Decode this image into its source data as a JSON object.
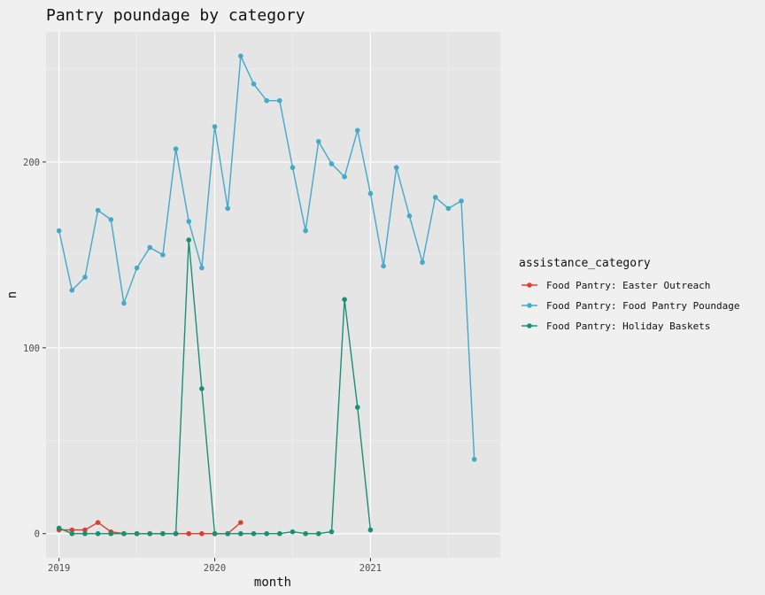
{
  "chart_data": {
    "type": "line",
    "title": "Pantry poundage by category",
    "xlabel": "month",
    "ylabel": "n",
    "x_ticks": [
      {
        "value": "2019-01",
        "label": "2019"
      },
      {
        "value": "2020-01",
        "label": "2020"
      },
      {
        "value": "2021-01",
        "label": "2021"
      }
    ],
    "y_ticks": [
      0,
      100,
      200
    ],
    "xlim": [
      "2018-12",
      "2021-11"
    ],
    "ylim": [
      -13,
      270
    ],
    "grid": true,
    "legend": {
      "title": "assistance_category",
      "position": "right"
    },
    "series": [
      {
        "name": "Food Pantry: Easter Outreach",
        "color": "#d9412e",
        "points": [
          [
            "2019-01",
            2
          ],
          [
            "2019-02",
            2
          ],
          [
            "2019-03",
            2
          ],
          [
            "2019-04",
            6
          ],
          [
            "2019-05",
            1
          ],
          [
            "2019-06",
            0
          ],
          [
            "2019-07",
            0
          ],
          [
            "2019-08",
            0
          ],
          [
            "2019-09",
            0
          ],
          [
            "2019-10",
            0
          ],
          [
            "2019-11",
            0
          ],
          [
            "2019-12",
            0
          ],
          [
            "2020-01",
            0
          ],
          [
            "2020-02",
            0
          ],
          [
            "2020-03",
            6
          ]
        ]
      },
      {
        "name": "Food Pantry: Food Pantry Poundage",
        "color": "#43aac8",
        "points": [
          [
            "2019-01",
            163
          ],
          [
            "2019-02",
            131
          ],
          [
            "2019-03",
            138
          ],
          [
            "2019-04",
            174
          ],
          [
            "2019-05",
            169
          ],
          [
            "2019-06",
            124
          ],
          [
            "2019-07",
            143
          ],
          [
            "2019-08",
            154
          ],
          [
            "2019-09",
            150
          ],
          [
            "2019-10",
            207
          ],
          [
            "2019-11",
            168
          ],
          [
            "2019-12",
            143
          ],
          [
            "2020-01",
            219
          ],
          [
            "2020-02",
            175
          ],
          [
            "2020-03",
            257
          ],
          [
            "2020-04",
            242
          ],
          [
            "2020-05",
            233
          ],
          [
            "2020-06",
            233
          ],
          [
            "2020-07",
            197
          ],
          [
            "2020-08",
            163
          ],
          [
            "2020-09",
            211
          ],
          [
            "2020-10",
            199
          ],
          [
            "2020-11",
            192
          ],
          [
            "2020-12",
            217
          ],
          [
            "2021-01",
            183
          ],
          [
            "2021-02",
            144
          ],
          [
            "2021-03",
            197
          ],
          [
            "2021-04",
            171
          ],
          [
            "2021-05",
            146
          ],
          [
            "2021-06",
            181
          ],
          [
            "2021-07",
            175
          ],
          [
            "2021-08",
            179
          ],
          [
            "2021-09",
            40
          ]
        ]
      },
      {
        "name": "Food Pantry: Holiday Baskets",
        "color": "#1a9070",
        "points": [
          [
            "2019-01",
            3
          ],
          [
            "2019-02",
            0
          ],
          [
            "2019-03",
            0
          ],
          [
            "2019-04",
            0
          ],
          [
            "2019-05",
            0
          ],
          [
            "2019-06",
            0
          ],
          [
            "2019-07",
            0
          ],
          [
            "2019-08",
            0
          ],
          [
            "2019-09",
            0
          ],
          [
            "2019-10",
            0
          ],
          [
            "2019-11",
            158
          ],
          [
            "2019-12",
            78
          ],
          [
            "2020-01",
            0
          ],
          [
            "2020-02",
            0
          ],
          [
            "2020-03",
            0
          ],
          [
            "2020-04",
            0
          ],
          [
            "2020-05",
            0
          ],
          [
            "2020-06",
            0
          ],
          [
            "2020-07",
            1
          ],
          [
            "2020-08",
            0
          ],
          [
            "2020-09",
            0
          ],
          [
            "2020-10",
            1
          ],
          [
            "2020-11",
            126
          ],
          [
            "2020-12",
            68
          ],
          [
            "2021-01",
            2
          ]
        ]
      }
    ]
  }
}
